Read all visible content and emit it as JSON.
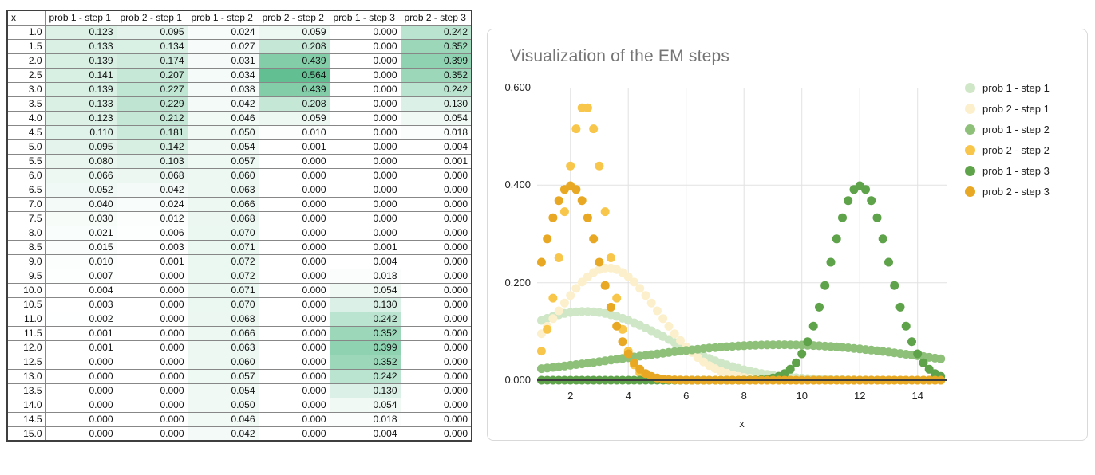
{
  "table": {
    "columns": [
      "x",
      "prob 1 - step 1",
      "prob 2 - step 1",
      "prob 1 - step 2",
      "prob 2 - step 2",
      "prob 1 - step 3",
      "prob 2 - step 3"
    ],
    "heatmap": {
      "min": 0,
      "max": 0.6,
      "low_color": "#ffffff",
      "high_color": "#57bb8a"
    },
    "rows": [
      [
        "1.0",
        "0.123",
        "0.095",
        "0.024",
        "0.059",
        "0.000",
        "0.242"
      ],
      [
        "1.5",
        "0.133",
        "0.134",
        "0.027",
        "0.208",
        "0.000",
        "0.352"
      ],
      [
        "2.0",
        "0.139",
        "0.174",
        "0.031",
        "0.439",
        "0.000",
        "0.399"
      ],
      [
        "2.5",
        "0.141",
        "0.207",
        "0.034",
        "0.564",
        "0.000",
        "0.352"
      ],
      [
        "3.0",
        "0.139",
        "0.227",
        "0.038",
        "0.439",
        "0.000",
        "0.242"
      ],
      [
        "3.5",
        "0.133",
        "0.229",
        "0.042",
        "0.208",
        "0.000",
        "0.130"
      ],
      [
        "4.0",
        "0.123",
        "0.212",
        "0.046",
        "0.059",
        "0.000",
        "0.054"
      ],
      [
        "4.5",
        "0.110",
        "0.181",
        "0.050",
        "0.010",
        "0.000",
        "0.018"
      ],
      [
        "5.0",
        "0.095",
        "0.142",
        "0.054",
        "0.001",
        "0.000",
        "0.004"
      ],
      [
        "5.5",
        "0.080",
        "0.103",
        "0.057",
        "0.000",
        "0.000",
        "0.001"
      ],
      [
        "6.0",
        "0.066",
        "0.068",
        "0.060",
        "0.000",
        "0.000",
        "0.000"
      ],
      [
        "6.5",
        "0.052",
        "0.042",
        "0.063",
        "0.000",
        "0.000",
        "0.000"
      ],
      [
        "7.0",
        "0.040",
        "0.024",
        "0.066",
        "0.000",
        "0.000",
        "0.000"
      ],
      [
        "7.5",
        "0.030",
        "0.012",
        "0.068",
        "0.000",
        "0.000",
        "0.000"
      ],
      [
        "8.0",
        "0.021",
        "0.006",
        "0.070",
        "0.000",
        "0.000",
        "0.000"
      ],
      [
        "8.5",
        "0.015",
        "0.003",
        "0.071",
        "0.000",
        "0.001",
        "0.000"
      ],
      [
        "9.0",
        "0.010",
        "0.001",
        "0.072",
        "0.000",
        "0.004",
        "0.000"
      ],
      [
        "9.5",
        "0.007",
        "0.000",
        "0.072",
        "0.000",
        "0.018",
        "0.000"
      ],
      [
        "10.0",
        "0.004",
        "0.000",
        "0.071",
        "0.000",
        "0.054",
        "0.000"
      ],
      [
        "10.5",
        "0.003",
        "0.000",
        "0.070",
        "0.000",
        "0.130",
        "0.000"
      ],
      [
        "11.0",
        "0.002",
        "0.000",
        "0.068",
        "0.000",
        "0.242",
        "0.000"
      ],
      [
        "11.5",
        "0.001",
        "0.000",
        "0.066",
        "0.000",
        "0.352",
        "0.000"
      ],
      [
        "12.0",
        "0.001",
        "0.000",
        "0.063",
        "0.000",
        "0.399",
        "0.000"
      ],
      [
        "12.5",
        "0.000",
        "0.000",
        "0.060",
        "0.000",
        "0.352",
        "0.000"
      ],
      [
        "13.0",
        "0.000",
        "0.000",
        "0.057",
        "0.000",
        "0.242",
        "0.000"
      ],
      [
        "13.5",
        "0.000",
        "0.000",
        "0.054",
        "0.000",
        "0.130",
        "0.000"
      ],
      [
        "14.0",
        "0.000",
        "0.000",
        "0.050",
        "0.000",
        "0.054",
        "0.000"
      ],
      [
        "14.5",
        "0.000",
        "0.000",
        "0.046",
        "0.000",
        "0.018",
        "0.000"
      ],
      [
        "15.0",
        "0.000",
        "0.000",
        "0.042",
        "0.000",
        "0.004",
        "0.000"
      ]
    ]
  },
  "chart_data": {
    "type": "scatter",
    "title": "Visualization of the EM steps",
    "title_color": "#757575",
    "xlabel": "x",
    "ylabel": "",
    "xlim": [
      0.85,
      15.0
    ],
    "ylim": [
      0,
      0.6
    ],
    "x_ticks": [
      2,
      4,
      6,
      8,
      10,
      12,
      14
    ],
    "y_ticks": [
      {
        "value": 0.0,
        "label": "0.000"
      },
      {
        "value": 0.2,
        "label": "0.200"
      },
      {
        "value": 0.4,
        "label": "0.400"
      },
      {
        "value": 0.6,
        "label": "0.600"
      }
    ],
    "grid": true,
    "legend_position": "right",
    "x_points": {
      "start": 1.0,
      "end": 14.8,
      "step": 0.2
    },
    "series": [
      {
        "name": "prob 1 - step 1",
        "color": "#cfe7c6",
        "distribution": {
          "type": "normal",
          "mean": 2.5,
          "sigma": 2.8284
        },
        "peak_value": 0.141
      },
      {
        "name": "prob 2 - step 1",
        "color": "#fcf0cc",
        "distribution": {
          "type": "normal",
          "mean": 3.3,
          "sigma": 1.7321
        },
        "peak_value": 0.23
      },
      {
        "name": "prob 1 - step 2",
        "color": "#8ec07a",
        "distribution": {
          "type": "normal",
          "mean": 9.25,
          "sigma": 5.5
        },
        "peak_value": 0.072
      },
      {
        "name": "prob 2 - step 2",
        "color": "#f7c64a",
        "distribution": {
          "type": "normal",
          "mean": 2.5,
          "sigma": 0.70711
        },
        "peak_value": 0.564
      },
      {
        "name": "prob 1 - step 3",
        "color": "#5ea24a",
        "distribution": {
          "type": "normal",
          "mean": 12.0,
          "sigma": 1.0
        },
        "peak_value": 0.399
      },
      {
        "name": "prob 2 - step 3",
        "color": "#e8a823",
        "distribution": {
          "type": "normal",
          "mean": 2.0,
          "sigma": 1.0
        },
        "peak_value": 0.399
      }
    ],
    "colors": {
      "gridline": "#e2e2e2",
      "axis_line": "#3c3c3c",
      "tick_label": "#222222"
    }
  }
}
